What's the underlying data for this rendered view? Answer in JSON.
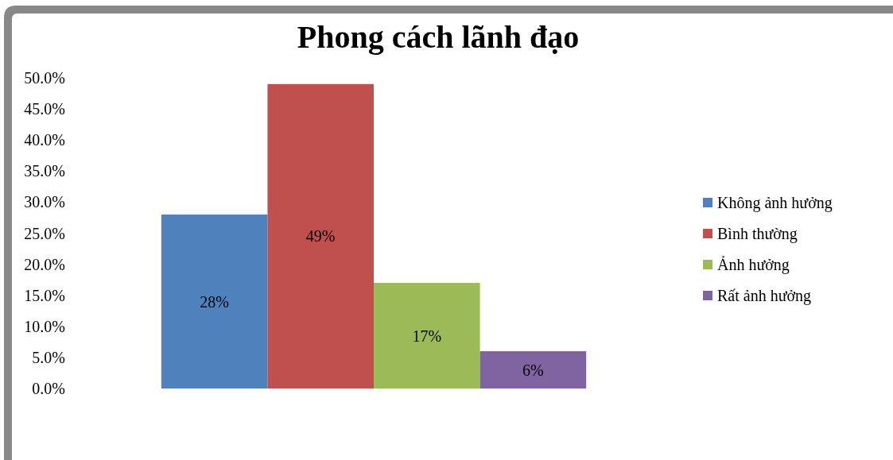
{
  "chart_data": {
    "type": "bar",
    "title": "Phong cách lãnh đạo",
    "categories": [
      null
    ],
    "series": [
      {
        "name": "Không ảnh hưởng",
        "color": "#4f81bd",
        "values": [
          28
        ],
        "value_labels": [
          "28%"
        ]
      },
      {
        "name": "Bình thường",
        "color": "#c0504d",
        "values": [
          49
        ],
        "value_labels": [
          "49%"
        ]
      },
      {
        "name": "Ảnh hưởng",
        "color": "#9bbb59",
        "values": [
          17
        ],
        "value_labels": [
          "17%"
        ]
      },
      {
        "name": "Rất ảnh hưởng",
        "color": "#8064a2",
        "values": [
          6
        ],
        "value_labels": [
          "6%"
        ]
      }
    ],
    "ylim": [
      0,
      50
    ],
    "yticks": [
      {
        "value": 0,
        "label": "0.0%"
      },
      {
        "value": 5,
        "label": "5.0%"
      },
      {
        "value": 10,
        "label": "10.0%"
      },
      {
        "value": 15,
        "label": "15.0%"
      },
      {
        "value": 20,
        "label": "20.0%"
      },
      {
        "value": 25,
        "label": "25.0%"
      },
      {
        "value": 30,
        "label": "30.0%"
      },
      {
        "value": 35,
        "label": "35.0%"
      },
      {
        "value": 40,
        "label": "40.0%"
      },
      {
        "value": 45,
        "label": "45.0%"
      },
      {
        "value": 50,
        "label": "50.0%"
      }
    ],
    "legend": "right"
  }
}
